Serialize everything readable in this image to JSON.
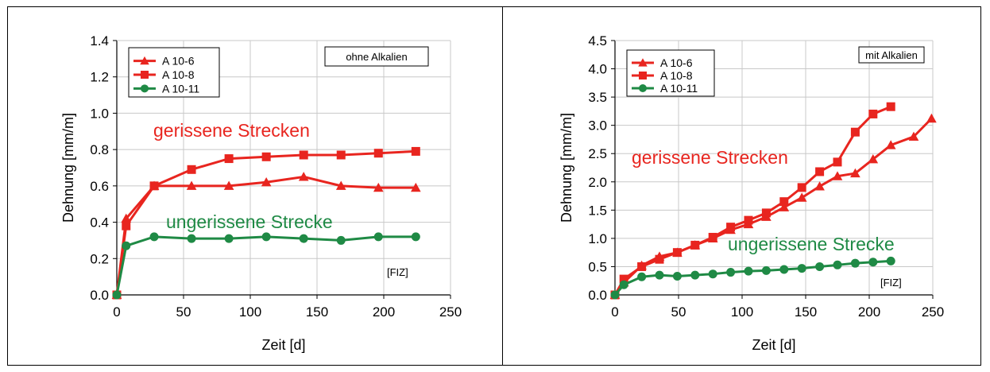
{
  "chart_data": [
    {
      "type": "line",
      "xlabel": "Zeit [d]",
      "ylabel": "Dehnung [mm/m]",
      "xlim": [
        0,
        250
      ],
      "ylim": [
        0,
        1.4
      ],
      "xticks": [
        "0",
        "50",
        "100",
        "150",
        "200",
        "250"
      ],
      "yticks": [
        "0.0",
        "0.2",
        "0.4",
        "0.6",
        "0.8",
        "1.0",
        "1.2",
        "1.4"
      ],
      "grid": true,
      "legend_position": "top-left",
      "box_label": "ohne Alkalien",
      "annotations": [
        "gerissene Strecken",
        "ungerissene Strecke",
        "[FIZ]"
      ],
      "series": [
        {
          "name": "A 10-6",
          "marker": "triangle",
          "color": "#e8251f",
          "x": [
            0,
            7,
            28,
            56,
            84,
            112,
            140,
            168,
            196,
            224
          ],
          "y": [
            0.0,
            0.42,
            0.6,
            0.6,
            0.6,
            0.62,
            0.65,
            0.6,
            0.59,
            0.59
          ]
        },
        {
          "name": "A 10-8",
          "marker": "square",
          "color": "#e8251f",
          "x": [
            0,
            7,
            28,
            56,
            84,
            112,
            140,
            168,
            196,
            224
          ],
          "y": [
            0.0,
            0.38,
            0.6,
            0.69,
            0.75,
            0.76,
            0.77,
            0.77,
            0.78,
            0.79
          ]
        },
        {
          "name": "A 10-11",
          "marker": "circle",
          "color": "#1f8a45",
          "x": [
            0,
            7,
            28,
            56,
            84,
            112,
            140,
            168,
            196,
            224
          ],
          "y": [
            0.0,
            0.27,
            0.32,
            0.31,
            0.31,
            0.32,
            0.31,
            0.3,
            0.32,
            0.32
          ]
        }
      ]
    },
    {
      "type": "line",
      "xlabel": "Zeit [d]",
      "ylabel": "Dehnung [mm/m]",
      "xlim": [
        0,
        250
      ],
      "ylim": [
        0,
        4.5
      ],
      "xticks": [
        "0",
        "50",
        "100",
        "150",
        "200",
        "250"
      ],
      "yticks": [
        "0.0",
        "0.5",
        "1.0",
        "1.5",
        "2.0",
        "2.5",
        "3.0",
        "3.5",
        "4.0",
        "4.5"
      ],
      "grid": true,
      "legend_position": "top-left",
      "box_label": "mit Alkalien",
      "annotations": [
        "gerissene Strecken",
        "ungerissene Strecke",
        "[FIZ]"
      ],
      "series": [
        {
          "name": "A 10-6",
          "marker": "triangle",
          "color": "#e8251f",
          "x": [
            0,
            7,
            21,
            35,
            49,
            63,
            77,
            91,
            105,
            119,
            133,
            147,
            161,
            175,
            189,
            203,
            217,
            235,
            249
          ],
          "y": [
            0.0,
            0.22,
            0.52,
            0.68,
            0.75,
            0.88,
            1.0,
            1.15,
            1.25,
            1.38,
            1.55,
            1.72,
            1.92,
            2.1,
            2.15,
            2.4,
            2.65,
            2.8,
            3.12
          ]
        },
        {
          "name": "A 10-8",
          "marker": "square",
          "color": "#e8251f",
          "x": [
            0,
            7,
            21,
            35,
            49,
            63,
            77,
            91,
            105,
            119,
            133,
            147,
            161,
            175,
            189,
            203,
            217
          ],
          "y": [
            0.0,
            0.28,
            0.5,
            0.63,
            0.75,
            0.88,
            1.02,
            1.2,
            1.32,
            1.45,
            1.65,
            1.9,
            2.18,
            2.35,
            2.88,
            3.2,
            3.33
          ]
        },
        {
          "name": "A 10-11",
          "marker": "circle",
          "color": "#1f8a45",
          "x": [
            0,
            7,
            21,
            35,
            49,
            63,
            77,
            91,
            105,
            119,
            133,
            147,
            161,
            175,
            189,
            203,
            217
          ],
          "y": [
            0.0,
            0.18,
            0.32,
            0.35,
            0.33,
            0.35,
            0.37,
            0.4,
            0.42,
            0.43,
            0.45,
            0.47,
            0.5,
            0.53,
            0.56,
            0.58,
            0.6
          ]
        }
      ]
    }
  ]
}
